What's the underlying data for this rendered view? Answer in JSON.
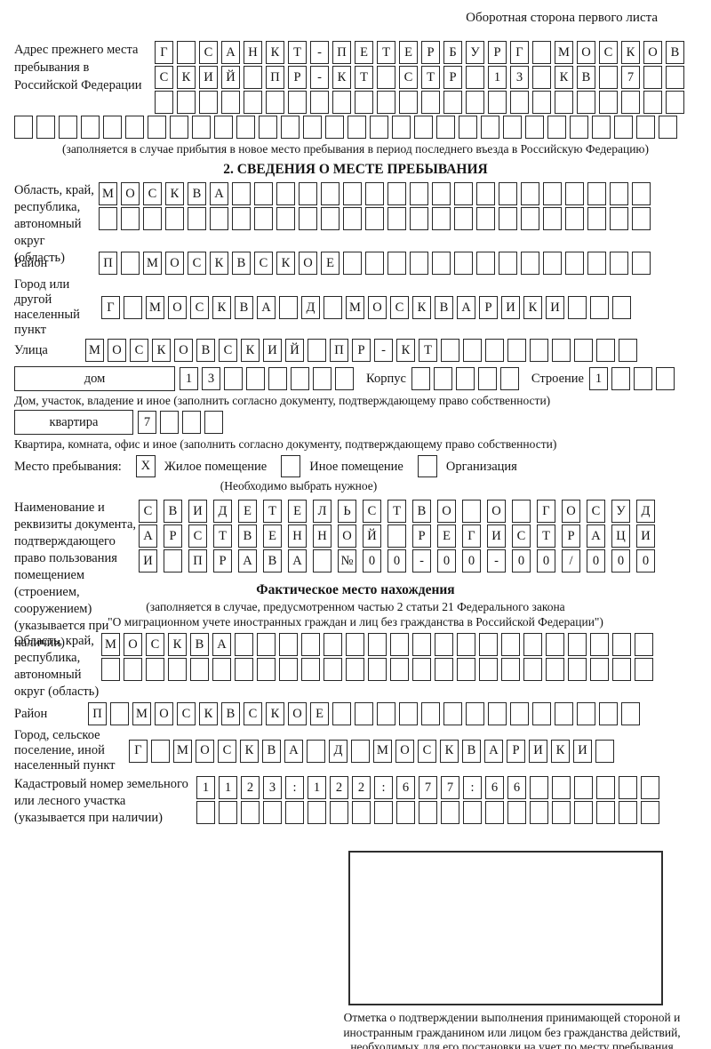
{
  "header": {
    "title": "Оборотная сторона первого листа"
  },
  "prev_address": {
    "label": "Адрес прежнего места пребывания в Российской Федерации",
    "row1": "Г_САНКТ-ПЕТЕРБУРГ_МОСКОВ",
    "row2": "СКИЙ_ПР-КТ_СТР_13_КВ_7__",
    "row3": "________________________",
    "row4": "______________________________",
    "note": "(заполняется в случае прибытия в новое место пребывания в период последнего въезда в Российскую Федерацию)"
  },
  "section2": {
    "title": "2. СВЕДЕНИЯ О МЕСТЕ ПРЕБЫВАНИЯ",
    "region": {
      "label": "Область, край, республика, автономный округ (область)",
      "row1": "МОСКВА___________________",
      "row2": "_________________________"
    },
    "district": {
      "label": "Район",
      "row1": "П_МОСКВСКОЕ______________"
    },
    "city": {
      "label": "Город или другой населенный пункт",
      "row1": "Г_МОСКВА_Д_МОСКВАРИКИ___"
    },
    "street": {
      "label": "Улица",
      "row1": "МОСКОВСКИЙ_ПР-КТ_________"
    },
    "house": {
      "box_label": "дом",
      "cells": "13______",
      "korpus_label": "Корпус",
      "korpus_cells": "_____",
      "stroenie_label": "Строение",
      "stroenie_cells": "1___",
      "note": "Дом, участок, владение и иное (заполнить согласно документу, подтверждающему право собственности)"
    },
    "apartment": {
      "box_label": "квартира",
      "cells": "7___",
      "note": "Квартира, комната, офис и иное (заполнить согласно документу, подтверждающему право собственности)"
    },
    "stay": {
      "label": "Место пребывания:",
      "options": [
        {
          "mark": "X",
          "label": "Жилое помещение"
        },
        {
          "mark": "",
          "label": "Иное помещение"
        },
        {
          "mark": "",
          "label": "Организация"
        }
      ],
      "note": "(Необходимо выбрать нужное)"
    },
    "document": {
      "label": "Наименование и реквизиты документа, подтверждающего право пользования помещением (строением, сооружением) (указывается при наличии)",
      "row1": "СВИДЕТЕЛЬСТВО_О_ГОСУД",
      "row2": "АРСТВЕННОЙ_РЕГИСТРАЦИ",
      "row3": "И_ПРАВА_№00-00-00/000"
    }
  },
  "actual_location": {
    "title": "Фактическое место нахождения",
    "note1": "(заполняется в случае, предусмотренном частью 2 статьи 21 Федерального закона",
    "note2": "\"О миграционном учете иностранных граждан и лиц без гражданства в Российской Федерации\")",
    "region": {
      "label": "Область, край, республика, автономный округ (область)",
      "row1": "МОСКВА___________________",
      "row2": "_________________________"
    },
    "district": {
      "label": "Район",
      "row1": "П_МОСКВСКОЕ______________"
    },
    "city": {
      "label": "Город, сельское поселение, иной населенный пункт",
      "row1": "Г_МОСКВА_Д_МОСКВАРИКИ_"
    },
    "cadastre": {
      "label": "Кадастровый номер земельного или лесного участка (указывается при наличии)",
      "row1": "1123:122:677:66______",
      "row2": "_____________________"
    }
  },
  "confirmation": {
    "caption": "Отметка о подтверждении выполнения принимающей стороной и иностранным гражданином или лицом без гражданства действий, необходимых для его постановки на учет по месту пребывания"
  }
}
